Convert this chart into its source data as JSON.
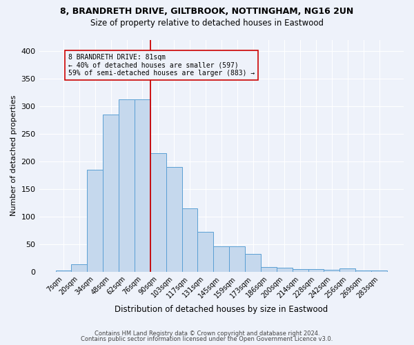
{
  "title1": "8, BRANDRETH DRIVE, GILTBROOK, NOTTINGHAM, NG16 2UN",
  "title2": "Size of property relative to detached houses in Eastwood",
  "xlabel": "Distribution of detached houses by size in Eastwood",
  "ylabel": "Number of detached properties",
  "bar_color": "#c5d8ed",
  "bar_edge_color": "#5a9fd4",
  "categories": [
    "7sqm",
    "20sqm",
    "34sqm",
    "48sqm",
    "62sqm",
    "76sqm",
    "90sqm",
    "103sqm",
    "117sqm",
    "131sqm",
    "145sqm",
    "159sqm",
    "173sqm",
    "186sqm",
    "200sqm",
    "214sqm",
    "228sqm",
    "242sqm",
    "256sqm",
    "269sqm",
    "283sqm"
  ],
  "values": [
    2,
    14,
    185,
    285,
    312,
    312,
    215,
    190,
    115,
    72,
    46,
    46,
    32,
    9,
    7,
    5,
    5,
    3,
    6,
    2,
    2
  ],
  "property_line_x": 5.5,
  "annotation_text": "8 BRANDRETH DRIVE: 81sqm\n← 40% of detached houses are smaller (597)\n59% of semi-detached houses are larger (883) →",
  "ylim": [
    0,
    420
  ],
  "yticks": [
    0,
    50,
    100,
    150,
    200,
    250,
    300,
    350,
    400
  ],
  "footer1": "Contains HM Land Registry data © Crown copyright and database right 2024.",
  "footer2": "Contains public sector information licensed under the Open Government Licence v3.0.",
  "bg_color": "#eef2fa",
  "grid_color": "#ffffff",
  "red_line_color": "#cc0000"
}
